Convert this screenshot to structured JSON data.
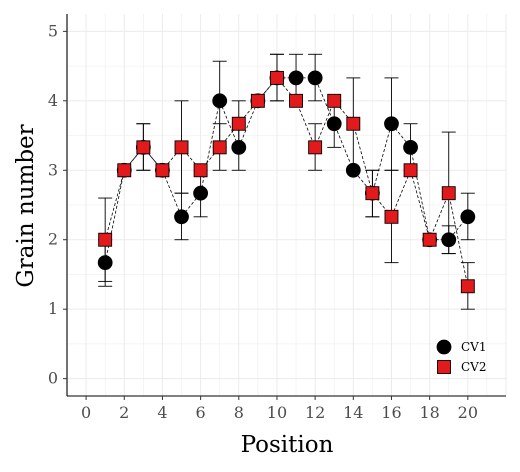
{
  "chart_data": {
    "type": "scatter",
    "xlabel": "Position",
    "ylabel": "Grain number",
    "xlim": [
      -1,
      22
    ],
    "ylim": [
      -0.25,
      5.25
    ],
    "x_ticks": [
      0,
      2,
      4,
      6,
      8,
      10,
      12,
      14,
      16,
      18,
      20
    ],
    "y_ticks": [
      0,
      1,
      2,
      3,
      4,
      5
    ],
    "grid": true,
    "legend_position": "bottom-right",
    "series": [
      {
        "name": "CV1",
        "color": "#000000",
        "marker": "circle",
        "x": [
          1,
          2,
          3,
          4,
          5,
          6,
          7,
          8,
          9,
          10,
          11,
          12,
          13,
          14,
          15,
          16,
          17,
          18,
          19,
          20
        ],
        "values": [
          1.67,
          3.0,
          3.33,
          3.0,
          2.33,
          2.67,
          4.0,
          3.33,
          4.0,
          4.33,
          4.33,
          4.33,
          3.67,
          3.0,
          2.67,
          3.67,
          3.33,
          2.0,
          2.0,
          2.33
        ],
        "error_low": [
          1.33,
          3.0,
          3.0,
          3.0,
          2.0,
          2.33,
          3.33,
          3.0,
          4.0,
          4.0,
          4.0,
          4.0,
          3.33,
          3.0,
          2.33,
          3.0,
          3.0,
          2.0,
          1.8,
          2.0
        ],
        "error_high": [
          2.0,
          3.0,
          3.67,
          3.0,
          2.67,
          3.0,
          4.57,
          3.67,
          4.0,
          4.67,
          4.67,
          4.67,
          4.0,
          3.0,
          3.0,
          4.33,
          3.67,
          2.0,
          2.2,
          2.67
        ]
      },
      {
        "name": "CV2",
        "color": "#e31a1c",
        "marker": "square",
        "x": [
          1,
          2,
          3,
          4,
          5,
          6,
          7,
          8,
          9,
          10,
          11,
          12,
          13,
          14,
          15,
          16,
          17,
          18,
          19,
          20
        ],
        "values": [
          2.0,
          3.0,
          3.33,
          3.0,
          3.33,
          3.0,
          3.33,
          3.67,
          4.0,
          4.33,
          4.0,
          3.33,
          4.0,
          3.67,
          2.67,
          2.33,
          3.0,
          2.0,
          2.67,
          1.33
        ],
        "error_low": [
          1.4,
          3.0,
          3.0,
          3.0,
          2.67,
          3.0,
          3.0,
          3.33,
          4.0,
          4.0,
          4.0,
          3.0,
          4.0,
          3.0,
          2.33,
          1.67,
          3.0,
          2.0,
          1.8,
          1.0
        ],
        "error_high": [
          2.6,
          3.0,
          3.67,
          3.0,
          4.0,
          3.0,
          3.67,
          4.0,
          4.0,
          4.67,
          4.0,
          3.67,
          4.0,
          4.33,
          3.0,
          3.0,
          3.0,
          2.0,
          3.55,
          1.67
        ]
      }
    ]
  }
}
